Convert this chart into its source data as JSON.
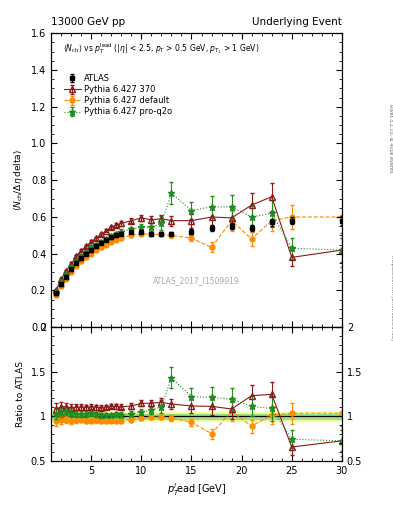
{
  "title_left": "13000 GeV pp",
  "title_right": "Underlying Event",
  "right_label_top": "Rivet 3.1.10, ≥ 400k events",
  "right_label_bot": "mcplots.cern.ch [arXiv:1306.3436]",
  "watermark": "ATLAS_2017_I1509919",
  "ylabel_main": "⟨ N_{ch}/ Δη delta⟩",
  "ylabel_ratio": "Ratio to ATLAS",
  "ylim_main": [
    0.0,
    1.6
  ],
  "ylim_ratio": [
    0.5,
    2.0
  ],
  "xlim": [
    1,
    30
  ],
  "atlas_x": [
    1.5,
    2.0,
    2.5,
    3.0,
    3.5,
    4.0,
    4.5,
    5.0,
    5.5,
    6.0,
    6.5,
    7.0,
    7.5,
    8.0,
    9.0,
    10.0,
    11.0,
    12.0,
    13.0,
    15.0,
    17.0,
    19.0,
    21.0,
    23.0,
    25.0,
    30.0
  ],
  "atlas_y": [
    0.185,
    0.235,
    0.275,
    0.315,
    0.35,
    0.375,
    0.4,
    0.42,
    0.44,
    0.46,
    0.475,
    0.49,
    0.5,
    0.51,
    0.52,
    0.52,
    0.51,
    0.51,
    0.51,
    0.52,
    0.54,
    0.55,
    0.54,
    0.57,
    0.58,
    0.58
  ],
  "atlas_ey": [
    0.008,
    0.008,
    0.008,
    0.008,
    0.008,
    0.008,
    0.008,
    0.008,
    0.008,
    0.008,
    0.008,
    0.008,
    0.008,
    0.008,
    0.008,
    0.008,
    0.008,
    0.008,
    0.01,
    0.012,
    0.015,
    0.015,
    0.015,
    0.02,
    0.02,
    0.025
  ],
  "py370_x": [
    1.5,
    2.0,
    2.5,
    3.0,
    3.5,
    4.0,
    4.5,
    5.0,
    5.5,
    6.0,
    6.5,
    7.0,
    7.5,
    8.0,
    9.0,
    10.0,
    11.0,
    12.0,
    13.0,
    15.0,
    17.0,
    19.0,
    21.0,
    23.0,
    25.0,
    30.0
  ],
  "py370_y": [
    0.2,
    0.26,
    0.305,
    0.345,
    0.385,
    0.415,
    0.44,
    0.465,
    0.485,
    0.505,
    0.525,
    0.545,
    0.555,
    0.565,
    0.58,
    0.595,
    0.585,
    0.59,
    0.58,
    0.58,
    0.6,
    0.595,
    0.665,
    0.71,
    0.38,
    0.42
  ],
  "py370_ey": [
    0.008,
    0.008,
    0.008,
    0.008,
    0.008,
    0.008,
    0.008,
    0.008,
    0.008,
    0.008,
    0.008,
    0.008,
    0.01,
    0.012,
    0.012,
    0.015,
    0.018,
    0.022,
    0.028,
    0.038,
    0.048,
    0.058,
    0.065,
    0.075,
    0.048,
    0.065
  ],
  "pydef_x": [
    1.5,
    2.0,
    2.5,
    3.0,
    3.5,
    4.0,
    4.5,
    5.0,
    5.5,
    6.0,
    6.5,
    7.0,
    7.5,
    8.0,
    9.0,
    10.0,
    11.0,
    12.0,
    13.0,
    15.0,
    17.0,
    19.0,
    21.0,
    23.0,
    25.0,
    30.0
  ],
  "pydef_y": [
    0.175,
    0.225,
    0.265,
    0.3,
    0.335,
    0.36,
    0.38,
    0.4,
    0.42,
    0.435,
    0.45,
    0.465,
    0.475,
    0.485,
    0.5,
    0.51,
    0.505,
    0.505,
    0.5,
    0.485,
    0.435,
    0.58,
    0.48,
    0.58,
    0.6,
    0.6
  ],
  "pydef_ey": [
    0.008,
    0.008,
    0.008,
    0.008,
    0.008,
    0.008,
    0.008,
    0.008,
    0.008,
    0.008,
    0.008,
    0.008,
    0.008,
    0.008,
    0.008,
    0.008,
    0.008,
    0.008,
    0.012,
    0.018,
    0.028,
    0.055,
    0.038,
    0.055,
    0.065,
    0.17
  ],
  "pyq2o_x": [
    1.5,
    2.0,
    2.5,
    3.0,
    3.5,
    4.0,
    4.5,
    5.0,
    5.5,
    6.0,
    6.5,
    7.0,
    7.5,
    8.0,
    9.0,
    10.0,
    11.0,
    12.0,
    13.0,
    15.0,
    17.0,
    19.0,
    21.0,
    23.0,
    25.0,
    30.0
  ],
  "pyq2o_y": [
    0.19,
    0.245,
    0.29,
    0.325,
    0.36,
    0.385,
    0.41,
    0.435,
    0.45,
    0.465,
    0.48,
    0.495,
    0.51,
    0.52,
    0.535,
    0.545,
    0.545,
    0.565,
    0.73,
    0.635,
    0.655,
    0.655,
    0.6,
    0.62,
    0.43,
    0.42
  ],
  "pyq2o_ey": [
    0.008,
    0.008,
    0.008,
    0.008,
    0.008,
    0.008,
    0.008,
    0.008,
    0.008,
    0.008,
    0.008,
    0.008,
    0.008,
    0.012,
    0.012,
    0.018,
    0.022,
    0.038,
    0.058,
    0.048,
    0.058,
    0.065,
    0.058,
    0.075,
    0.058,
    0.095
  ],
  "color_atlas": "#000000",
  "color_py370": "#8b1a1a",
  "color_pydef": "#ff8c00",
  "color_pyq2o": "#228b22",
  "band_green": 0.03,
  "band_yellow": 0.05
}
